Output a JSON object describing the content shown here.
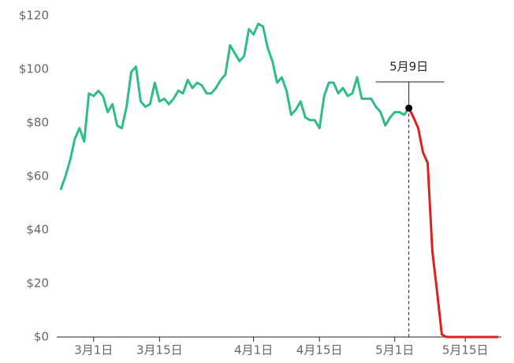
{
  "chart_data": {
    "type": "line",
    "categories": [
      null,
      null,
      null,
      null,
      null,
      null,
      null,
      "3月1日",
      null,
      null,
      null,
      null,
      null,
      null,
      null,
      null,
      null,
      null,
      null,
      null,
      null,
      "3月15日",
      null,
      null,
      null,
      null,
      null,
      null,
      null,
      null,
      null,
      null,
      null,
      null,
      null,
      null,
      null,
      null,
      null,
      null,
      null,
      "4月1日",
      null,
      null,
      null,
      null,
      null,
      null,
      null,
      null,
      null,
      null,
      null,
      null,
      null,
      "4月15日",
      null,
      null,
      null,
      null,
      null,
      null,
      null,
      null,
      null,
      null,
      null,
      null,
      null,
      null,
      null,
      "5月1日",
      null,
      null,
      "5月9日",
      null,
      null,
      null,
      null,
      null,
      null,
      null,
      null,
      null,
      null,
      null,
      "5月15日",
      null,
      null,
      null,
      null,
      null,
      null,
      null
    ],
    "series": [
      {
        "color": "#2ebd85",
        "values": [
          55,
          60,
          66,
          74,
          78,
          73,
          91,
          90,
          92,
          90,
          84,
          87,
          79,
          78,
          86,
          99,
          101,
          88,
          86,
          87,
          95,
          88,
          89,
          87,
          89,
          92,
          91,
          96,
          93,
          95,
          94,
          91,
          91,
          93,
          96,
          98,
          109,
          106,
          103,
          105,
          115,
          113,
          117,
          116,
          108,
          103,
          95,
          97,
          92,
          83,
          85,
          88,
          82,
          81,
          81,
          78,
          90,
          95,
          95,
          91,
          93,
          90,
          91,
          97,
          89,
          89,
          89,
          86,
          84,
          79,
          82,
          84,
          84,
          83,
          85.5,
          null,
          null,
          null,
          null,
          null,
          null,
          null,
          null,
          null,
          null,
          null,
          null,
          null,
          null,
          null,
          null,
          null,
          null,
          null
        ]
      },
      {
        "color": "#e02020",
        "values": [
          null,
          null,
          null,
          null,
          null,
          null,
          null,
          null,
          null,
          null,
          null,
          null,
          null,
          null,
          null,
          null,
          null,
          null,
          null,
          null,
          null,
          null,
          null,
          null,
          null,
          null,
          null,
          null,
          null,
          null,
          null,
          null,
          null,
          null,
          null,
          null,
          null,
          null,
          null,
          null,
          null,
          null,
          null,
          null,
          null,
          null,
          null,
          null,
          null,
          null,
          null,
          null,
          null,
          null,
          null,
          null,
          null,
          null,
          null,
          null,
          null,
          null,
          null,
          null,
          null,
          null,
          null,
          null,
          null,
          null,
          null,
          null,
          null,
          null,
          85.5,
          82,
          78,
          69,
          65,
          32,
          17,
          1,
          0,
          0,
          0,
          0,
          0,
          0,
          0,
          0,
          0,
          0,
          0,
          0
        ]
      }
    ],
    "annotation": "5月9日",
    "ylim": [
      0,
      120
    ],
    "yticks": [
      {
        "value": 0,
        "label": "$0"
      },
      {
        "value": 20,
        "label": "$20"
      },
      {
        "value": 40,
        "label": "$40"
      },
      {
        "value": 60,
        "label": "$60"
      },
      {
        "value": 80,
        "label": "$80"
      },
      {
        "value": 100,
        "label": "$100"
      },
      {
        "value": 120,
        "label": "$120"
      }
    ]
  }
}
